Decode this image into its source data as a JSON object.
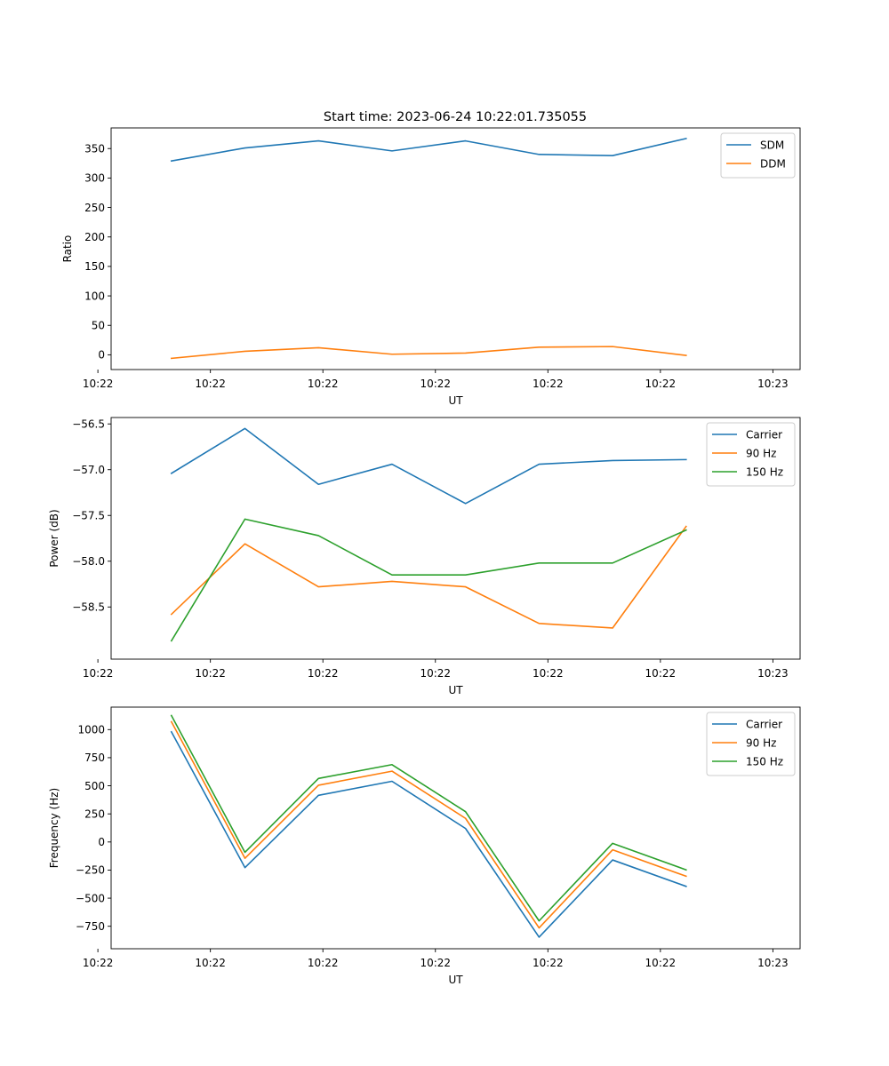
{
  "figure": {
    "title": "Start time: 2023-06-24 10:22:01.735055"
  },
  "colors": {
    "blue": "#1f77b4",
    "orange": "#ff7f0e",
    "green": "#2ca02c"
  },
  "chart_data": [
    {
      "type": "line",
      "title": "Start time: 2023-06-24 10:22:01.735055",
      "xlabel": "UT",
      "ylabel": "Ratio",
      "x": [
        1,
        2,
        3,
        4,
        5,
        6,
        7,
        8
      ],
      "xlim": [
        0.18,
        9.55
      ],
      "x_ticks": [
        0,
        1.53,
        3.06,
        4.59,
        6.12,
        7.65,
        9.18
      ],
      "x_tick_labels": [
        "10:22",
        "10:22",
        "10:22",
        "10:22",
        "10:22",
        "10:22",
        "10:23"
      ],
      "ylim": [
        -25,
        385
      ],
      "y_ticks": [
        0,
        50,
        100,
        150,
        200,
        250,
        300,
        350
      ],
      "y_tick_labels": [
        "0",
        "50",
        "100",
        "150",
        "200",
        "250",
        "300",
        "350"
      ],
      "grid": false,
      "legend": "upper right",
      "series": [
        {
          "name": "SDM",
          "color": "#1f77b4",
          "values": [
            329,
            351,
            363,
            346,
            363,
            340,
            338,
            367
          ]
        },
        {
          "name": "DDM",
          "color": "#ff7f0e",
          "values": [
            -6,
            6,
            12,
            1,
            3,
            13,
            14,
            -1
          ]
        }
      ]
    },
    {
      "type": "line",
      "xlabel": "UT",
      "ylabel": "Power (dB)",
      "x": [
        1,
        2,
        3,
        4,
        5,
        6,
        7,
        8
      ],
      "xlim": [
        0.18,
        9.55
      ],
      "x_ticks": [
        0,
        1.53,
        3.06,
        4.59,
        6.12,
        7.65,
        9.18
      ],
      "x_tick_labels": [
        "10:22",
        "10:22",
        "10:22",
        "10:22",
        "10:22",
        "10:22",
        "10:23"
      ],
      "ylim": [
        -59.07,
        -56.43
      ],
      "y_ticks": [
        -58.5,
        -58.0,
        -57.5,
        -57.0,
        -56.5
      ],
      "y_tick_labels": [
        "−58.5",
        "−58.0",
        "−57.5",
        "−57.0",
        "−56.5"
      ],
      "grid": false,
      "legend": "upper right",
      "series": [
        {
          "name": "Carrier",
          "color": "#1f77b4",
          "values": [
            -57.04,
            -56.55,
            -57.16,
            -56.94,
            -57.37,
            -56.94,
            -56.9,
            -56.89
          ]
        },
        {
          "name": "90 Hz",
          "color": "#ff7f0e",
          "values": [
            -58.58,
            -57.81,
            -58.28,
            -58.22,
            -58.28,
            -58.68,
            -58.73,
            -57.62
          ]
        },
        {
          "name": "150 Hz",
          "color": "#2ca02c",
          "values": [
            -58.87,
            -57.54,
            -57.72,
            -58.15,
            -58.15,
            -58.02,
            -58.02,
            -57.66
          ]
        }
      ]
    },
    {
      "type": "line",
      "xlabel": "UT",
      "ylabel": "Frequency (Hz)",
      "x": [
        1,
        2,
        3,
        4,
        5,
        6,
        7,
        8
      ],
      "xlim": [
        0.18,
        9.55
      ],
      "x_ticks": [
        0,
        1.53,
        3.06,
        4.59,
        6.12,
        7.65,
        9.18
      ],
      "x_tick_labels": [
        "10:22",
        "10:22",
        "10:22",
        "10:22",
        "10:22",
        "10:22",
        "10:23"
      ],
      "ylim": [
        -950,
        1200
      ],
      "y_ticks": [
        -750,
        -500,
        -250,
        0,
        250,
        500,
        750,
        1000
      ],
      "y_tick_labels": [
        "−750",
        "−500",
        "−250",
        "0",
        "250",
        "500",
        "750",
        "1000"
      ],
      "grid": false,
      "legend": "upper right",
      "series": [
        {
          "name": "Carrier",
          "color": "#1f77b4",
          "values": [
            980,
            -228,
            415,
            540,
            120,
            -847,
            -160,
            -395
          ]
        },
        {
          "name": "90 Hz",
          "color": "#ff7f0e",
          "values": [
            1070,
            -145,
            505,
            630,
            210,
            -765,
            -70,
            -305
          ]
        },
        {
          "name": "150 Hz",
          "color": "#2ca02c",
          "values": [
            1125,
            -92,
            565,
            688,
            270,
            -702,
            -12,
            -248
          ]
        }
      ]
    }
  ]
}
